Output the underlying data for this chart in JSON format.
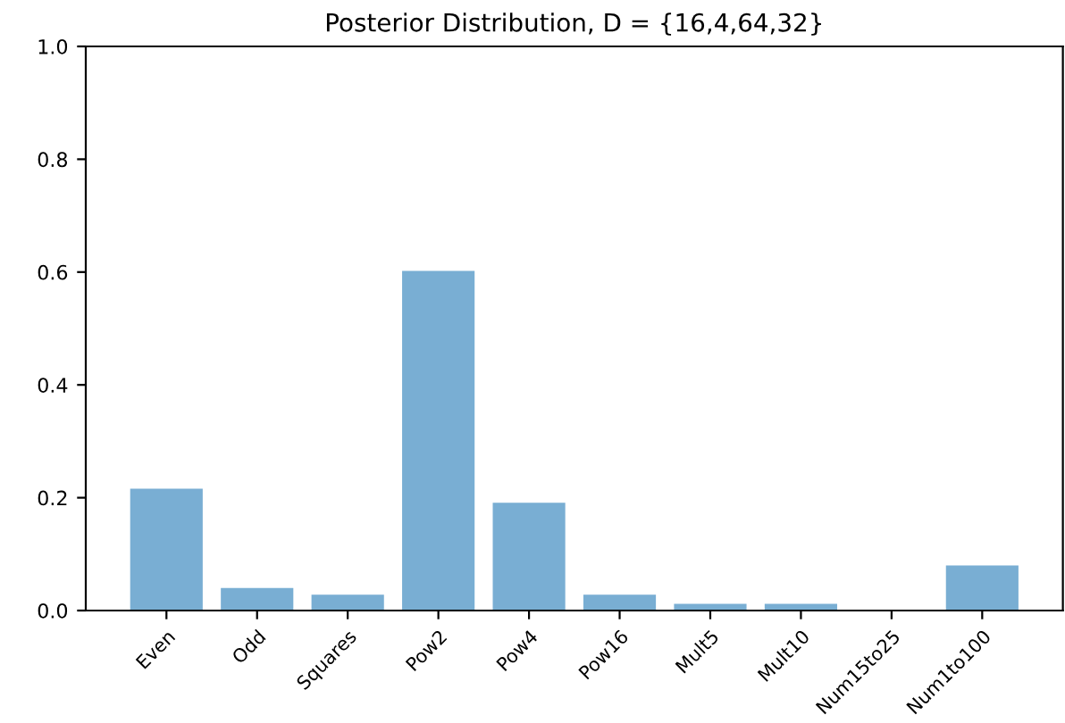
{
  "chart_data": {
    "type": "bar",
    "title": "Posterior Distribution, D = {16,4,64,32}",
    "categories": [
      "Even",
      "Odd",
      "Squares",
      "Pow2",
      "Pow4",
      "Pow16",
      "Mult5",
      "Mult10",
      "Num15to25",
      "Num1to100"
    ],
    "values": [
      0.216,
      0.04,
      0.028,
      0.602,
      0.191,
      0.028,
      0.012,
      0.012,
      0.0,
      0.08
    ],
    "color": "#79aed3",
    "ylim": [
      0,
      1
    ],
    "yticks": [
      {
        "value": 0,
        "label": "0.0"
      },
      {
        "value": 0.2,
        "label": "0.2"
      },
      {
        "value": 0.4,
        "label": "0.4"
      },
      {
        "value": 0.6,
        "label": "0.6"
      },
      {
        "value": 0.8,
        "label": "0.8"
      },
      {
        "value": 1,
        "label": "1.0"
      }
    ],
    "grid": false
  }
}
